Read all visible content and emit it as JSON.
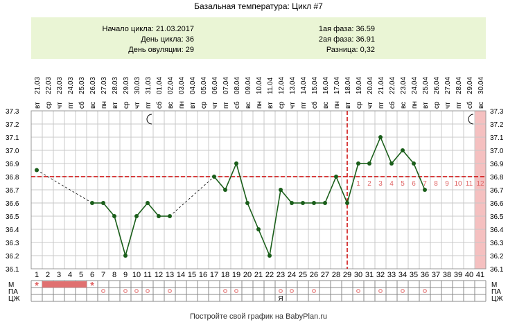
{
  "title": "Базальная температура: Цикл #7",
  "info": {
    "left": [
      {
        "label": "Начало цикла:",
        "value": "21.03.2017"
      },
      {
        "label": "День цикла:",
        "value": "36"
      },
      {
        "label": "День овуляции:",
        "value": "29"
      }
    ],
    "right": [
      {
        "label": "1ая фаза:",
        "value": "36.59"
      },
      {
        "label": "2ая фаза:",
        "value": "36.91"
      },
      {
        "label": "Разница:",
        "value": "0,32"
      }
    ]
  },
  "footer": "Постройте свой график на BabyPlan.ru",
  "chart_data": {
    "type": "line",
    "dates": [
      "21.03",
      "22.03",
      "23.03",
      "24.03",
      "25.03",
      "26.03",
      "27.03",
      "28.03",
      "29.03",
      "30.03",
      "31.03",
      "01.04",
      "02.04",
      "03.04",
      "04.04",
      "05.04",
      "06.04",
      "07.04",
      "08.04",
      "09.04",
      "10.04",
      "11.04",
      "12.04",
      "13.04",
      "14.04",
      "15.04",
      "16.04",
      "17.04",
      "18.04",
      "19.04",
      "20.04",
      "21.04",
      "22.04",
      "23.04",
      "24.04",
      "25.04",
      "26.04",
      "27.04",
      "28.04",
      "29.04",
      "30.04"
    ],
    "weekdays": [
      "вт",
      "ср",
      "чт",
      "пт",
      "сб",
      "вс",
      "пн",
      "вт",
      "ср",
      "чт",
      "пт",
      "сб",
      "вс",
      "пн",
      "вт",
      "ср",
      "чт",
      "пт",
      "сб",
      "вс",
      "пн",
      "вт",
      "ср",
      "чт",
      "пт",
      "сб",
      "вс",
      "пн",
      "вт",
      "ср",
      "чт",
      "пт",
      "сб",
      "вс",
      "пн",
      "вт",
      "ср",
      "чт",
      "пт",
      "сб",
      "вс"
    ],
    "days": [
      1,
      2,
      3,
      4,
      5,
      6,
      7,
      8,
      9,
      10,
      11,
      12,
      13,
      14,
      15,
      16,
      17,
      18,
      19,
      20,
      21,
      22,
      23,
      24,
      25,
      26,
      27,
      28,
      29,
      30,
      31,
      32,
      33,
      34,
      35,
      36,
      37,
      38,
      39,
      40,
      41
    ],
    "temperatures": [
      36.85,
      null,
      null,
      null,
      null,
      36.6,
      36.6,
      36.5,
      36.2,
      36.5,
      36.6,
      36.5,
      36.5,
      null,
      null,
      null,
      36.8,
      36.7,
      36.9,
      36.6,
      36.4,
      36.2,
      36.7,
      36.6,
      36.6,
      36.6,
      36.6,
      36.8,
      36.6,
      36.9,
      36.9,
      37.1,
      36.9,
      37.0,
      36.9,
      36.7,
      null,
      null,
      null,
      null,
      null
    ],
    "ylim": [
      36.1,
      37.3
    ],
    "yticks": [
      "36.1",
      "36.2",
      "36.3",
      "36.4",
      "36.5",
      "36.6",
      "36.7",
      "36.8",
      "36.9",
      "37.0",
      "37.1",
      "37.2",
      "37.3"
    ],
    "coverline": 36.8,
    "ovulation_day": 29,
    "luteal_day_labels": [
      "1",
      "2",
      "3",
      "4",
      "5",
      "6",
      "7",
      "8",
      "9",
      "10",
      "11",
      "12"
    ],
    "highlight_day": 41,
    "moon_days": [
      11,
      40
    ],
    "grid": true,
    "colors": {
      "line": "#1a5e1a",
      "dashed": "#006400",
      "coverline": "#cc0000",
      "highlight": "#f5c0c0",
      "menses": "#e07070",
      "mark": "#e06060"
    },
    "rows": {
      "labels": [
        "М",
        "ПА",
        "ЦЖ"
      ],
      "m_marks": [
        {
          "day": 1,
          "mark": "*"
        },
        {
          "day": 2,
          "mark": "fill"
        },
        {
          "day": 3,
          "mark": "fill"
        },
        {
          "day": 4,
          "mark": "fill"
        },
        {
          "day": 5,
          "mark": "fill"
        },
        {
          "day": 6,
          "mark": "*"
        }
      ],
      "pa_days": [
        7,
        9,
        10,
        11,
        13,
        18,
        19,
        23,
        24,
        26,
        30,
        32,
        34,
        36
      ],
      "czh_marks": [
        {
          "day": 23,
          "mark": "Я"
        }
      ]
    }
  }
}
